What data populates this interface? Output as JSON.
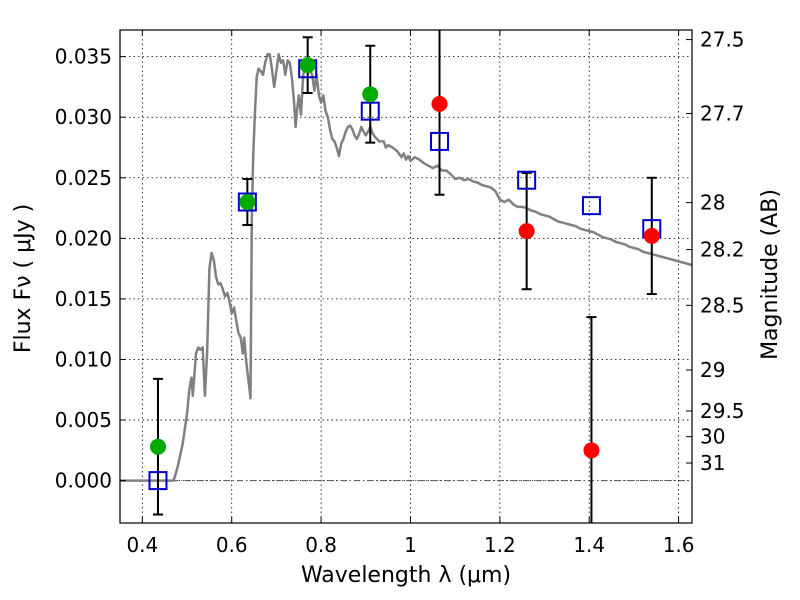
{
  "chart_data": {
    "type": "scatter",
    "xlabel": "Wavelength  λ (μm)",
    "ylabel": "Flux  Fν  ( μJy )",
    "ylabel_right": "Magnitude (AB)",
    "xlim": [
      0.35,
      1.63
    ],
    "ylim": [
      -0.0035,
      0.0372
    ],
    "grid": true,
    "x_ticks": [
      0.4,
      0.6,
      0.8,
      1.0,
      1.2,
      1.4,
      1.6
    ],
    "x_tick_labels": [
      "0.4",
      "0.6",
      "0.8",
      "1",
      "1.2",
      "1.4",
      "1.6"
    ],
    "y_ticks": [
      0.0,
      0.005,
      0.01,
      0.015,
      0.02,
      0.025,
      0.03,
      0.035
    ],
    "y_tick_labels": [
      "0.000",
      "0.005",
      "0.010",
      "0.015",
      "0.020",
      "0.025",
      "0.030",
      "0.035"
    ],
    "right_ticks": [
      {
        "label": "27.5",
        "flux": 0.03641
      },
      {
        "label": "27.7",
        "flux": 0.0303
      },
      {
        "label": "28",
        "flux": 0.02295
      },
      {
        "label": "28.2",
        "flux": 0.01907
      },
      {
        "label": "28.5",
        "flux": 0.01447
      },
      {
        "label": "29",
        "flux": 0.00913
      },
      {
        "label": "29.5",
        "flux": 0.00575
      },
      {
        "label": "30",
        "flux": 0.00363
      },
      {
        "label": "31",
        "flux": 0.00145
      }
    ],
    "series": [
      {
        "kind": "model",
        "color": "#808080",
        "points": [
          [
            0.35,
            0.0
          ],
          [
            0.47,
            0.0
          ],
          [
            0.475,
            0.0006
          ],
          [
            0.48,
            0.0013
          ],
          [
            0.49,
            0.003
          ],
          [
            0.5,
            0.0055
          ],
          [
            0.505,
            0.0075
          ],
          [
            0.51,
            0.0085
          ],
          [
            0.513,
            0.007
          ],
          [
            0.516,
            0.0085
          ],
          [
            0.52,
            0.0105
          ],
          [
            0.525,
            0.011
          ],
          [
            0.53,
            0.0108
          ],
          [
            0.535,
            0.011
          ],
          [
            0.54,
            0.007
          ],
          [
            0.545,
            0.0105
          ],
          [
            0.55,
            0.0175
          ],
          [
            0.555,
            0.0188
          ],
          [
            0.56,
            0.0182
          ],
          [
            0.565,
            0.0168
          ],
          [
            0.57,
            0.0162
          ],
          [
            0.575,
            0.0163
          ],
          [
            0.58,
            0.0158
          ],
          [
            0.585,
            0.0152
          ],
          [
            0.59,
            0.0155
          ],
          [
            0.595,
            0.0148
          ],
          [
            0.6,
            0.0138
          ],
          [
            0.605,
            0.0143
          ],
          [
            0.61,
            0.0132
          ],
          [
            0.615,
            0.0122
          ],
          [
            0.62,
            0.0118
          ],
          [
            0.625,
            0.0105
          ],
          [
            0.628,
            0.0118
          ],
          [
            0.632,
            0.01
          ],
          [
            0.635,
            0.009
          ],
          [
            0.64,
            0.0075
          ],
          [
            0.642,
            0.0068
          ],
          [
            0.645,
            0.0215
          ],
          [
            0.648,
            0.0268
          ],
          [
            0.652,
            0.0305
          ],
          [
            0.656,
            0.0333
          ],
          [
            0.66,
            0.034
          ],
          [
            0.665,
            0.0338
          ],
          [
            0.67,
            0.0335
          ],
          [
            0.675,
            0.0345
          ],
          [
            0.68,
            0.0352
          ],
          [
            0.685,
            0.0352
          ],
          [
            0.69,
            0.034
          ],
          [
            0.695,
            0.0325
          ],
          [
            0.7,
            0.0338
          ],
          [
            0.705,
            0.0352
          ],
          [
            0.71,
            0.0345
          ],
          [
            0.715,
            0.0347
          ],
          [
            0.72,
            0.0335
          ],
          [
            0.725,
            0.0347
          ],
          [
            0.73,
            0.0345
          ],
          [
            0.735,
            0.0332
          ],
          [
            0.74,
            0.031
          ],
          [
            0.743,
            0.0292
          ],
          [
            0.746,
            0.0305
          ],
          [
            0.75,
            0.0318
          ],
          [
            0.755,
            0.0302
          ],
          [
            0.76,
            0.0335
          ],
          [
            0.765,
            0.0342
          ],
          [
            0.77,
            0.034
          ],
          [
            0.775,
            0.0338
          ],
          [
            0.78,
            0.0335
          ],
          [
            0.785,
            0.0322
          ],
          [
            0.79,
            0.0335
          ],
          [
            0.795,
            0.0318
          ],
          [
            0.8,
            0.0312
          ],
          [
            0.805,
            0.0318
          ],
          [
            0.81,
            0.0305
          ],
          [
            0.815,
            0.03
          ],
          [
            0.82,
            0.029
          ],
          [
            0.825,
            0.0282
          ],
          [
            0.83,
            0.028
          ],
          [
            0.835,
            0.0275
          ],
          [
            0.84,
            0.0268
          ],
          [
            0.845,
            0.0278
          ],
          [
            0.85,
            0.0282
          ],
          [
            0.855,
            0.0288
          ],
          [
            0.86,
            0.0292
          ],
          [
            0.865,
            0.0293
          ],
          [
            0.87,
            0.029
          ],
          [
            0.875,
            0.0285
          ],
          [
            0.88,
            0.0282
          ],
          [
            0.885,
            0.0286
          ],
          [
            0.89,
            0.0292
          ],
          [
            0.895,
            0.0288
          ],
          [
            0.9,
            0.0285
          ],
          [
            0.905,
            0.0288
          ],
          [
            0.91,
            0.0292
          ],
          [
            0.915,
            0.0287
          ],
          [
            0.92,
            0.0284
          ],
          [
            0.925,
            0.0282
          ],
          [
            0.93,
            0.028
          ],
          [
            0.94,
            0.028
          ],
          [
            0.945,
            0.0275
          ],
          [
            0.95,
            0.0277
          ],
          [
            0.96,
            0.0275
          ],
          [
            0.97,
            0.0272
          ],
          [
            0.98,
            0.0267
          ],
          [
            0.985,
            0.027
          ],
          [
            0.99,
            0.0265
          ],
          [
            0.995,
            0.0268
          ],
          [
            1.0,
            0.0264
          ],
          [
            1.01,
            0.0267
          ],
          [
            1.02,
            0.0265
          ],
          [
            1.03,
            0.0262
          ],
          [
            1.04,
            0.026
          ],
          [
            1.05,
            0.0258
          ],
          [
            1.06,
            0.026
          ],
          [
            1.07,
            0.0256
          ],
          [
            1.08,
            0.0256
          ],
          [
            1.09,
            0.0253
          ],
          [
            1.1,
            0.0249
          ],
          [
            1.11,
            0.025
          ],
          [
            1.12,
            0.0248
          ],
          [
            1.13,
            0.0249
          ],
          [
            1.14,
            0.0247
          ],
          [
            1.15,
            0.0246
          ],
          [
            1.16,
            0.0244
          ],
          [
            1.17,
            0.0243
          ],
          [
            1.18,
            0.0242
          ],
          [
            1.19,
            0.0239
          ],
          [
            1.2,
            0.0232
          ],
          [
            1.21,
            0.023
          ],
          [
            1.22,
            0.0232
          ],
          [
            1.23,
            0.0228
          ],
          [
            1.24,
            0.0226
          ],
          [
            1.25,
            0.0226
          ],
          [
            1.26,
            0.0225
          ],
          [
            1.27,
            0.0223
          ],
          [
            1.28,
            0.0222
          ],
          [
            1.29,
            0.022
          ],
          [
            1.3,
            0.0219
          ],
          [
            1.31,
            0.0218
          ],
          [
            1.32,
            0.0216
          ],
          [
            1.33,
            0.0214
          ],
          [
            1.34,
            0.0213
          ],
          [
            1.35,
            0.0212
          ],
          [
            1.36,
            0.0211
          ],
          [
            1.37,
            0.021
          ],
          [
            1.38,
            0.0208
          ],
          [
            1.39,
            0.0207
          ],
          [
            1.4,
            0.0206
          ],
          [
            1.41,
            0.0205
          ],
          [
            1.42,
            0.0203
          ],
          [
            1.43,
            0.0201
          ],
          [
            1.44,
            0.02
          ],
          [
            1.45,
            0.0199
          ],
          [
            1.46,
            0.0197
          ],
          [
            1.47,
            0.0196
          ],
          [
            1.48,
            0.0195
          ],
          [
            1.49,
            0.0193
          ],
          [
            1.5,
            0.0192
          ],
          [
            1.51,
            0.0191
          ],
          [
            1.52,
            0.0189
          ],
          [
            1.53,
            0.0188
          ],
          [
            1.54,
            0.0187
          ],
          [
            1.55,
            0.0186
          ],
          [
            1.56,
            0.0185
          ],
          [
            1.57,
            0.0184
          ],
          [
            1.58,
            0.0183
          ],
          [
            1.59,
            0.0182
          ],
          [
            1.6,
            0.0181
          ],
          [
            1.61,
            0.018
          ],
          [
            1.62,
            0.0179
          ],
          [
            1.63,
            0.0178
          ]
        ]
      },
      {
        "kind": "squares",
        "color": "#0000cc",
        "points": [
          [
            0.435,
            0.0
          ],
          [
            0.635,
            0.023
          ],
          [
            0.77,
            0.034
          ],
          [
            0.91,
            0.0305
          ],
          [
            1.065,
            0.028
          ],
          [
            1.26,
            0.0248
          ],
          [
            1.405,
            0.0227
          ],
          [
            1.54,
            0.0208
          ]
        ]
      },
      {
        "kind": "green_points",
        "color": "#00aa00",
        "points": [
          {
            "x": 0.435,
            "y": 0.0028,
            "err": 0.0056
          },
          {
            "x": 0.635,
            "y": 0.023,
            "err": 0.0019
          },
          {
            "x": 0.77,
            "y": 0.0343,
            "err": 0.0023
          },
          {
            "x": 0.91,
            "y": 0.0319,
            "err": 0.004
          }
        ]
      },
      {
        "kind": "red_points",
        "color": "#ff0000",
        "points": [
          {
            "x": 1.065,
            "y": 0.0311,
            "err": 0.0075
          },
          {
            "x": 1.26,
            "y": 0.0206,
            "err": 0.0048
          },
          {
            "x": 1.405,
            "y": 0.0025,
            "err": 0.011
          },
          {
            "x": 1.54,
            "y": 0.0202,
            "err": 0.0048
          }
        ]
      }
    ]
  }
}
